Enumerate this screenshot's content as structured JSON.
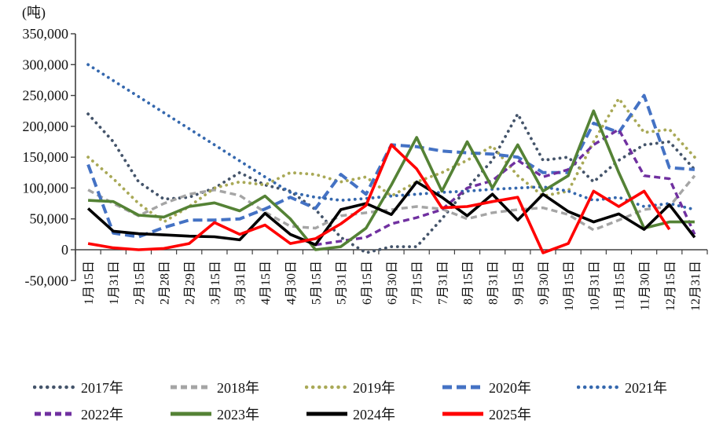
{
  "chart_data": {
    "type": "line",
    "unit_label": "(吨)",
    "title": "",
    "xlabel": "",
    "ylabel": "",
    "ylim": [
      -50000,
      350000
    ],
    "y_tick_step": 50000,
    "y_ticks": [
      350000,
      300000,
      250000,
      200000,
      150000,
      100000,
      50000,
      0,
      -50000
    ],
    "grid": false,
    "legend_position": "bottom",
    "legend_rows": [
      5,
      4
    ],
    "categories": [
      "1月15日",
      "1月31日",
      "2月15日",
      "2月28日",
      "2月29日",
      "3月15日",
      "3月31日",
      "4月15日",
      "4月30日",
      "5月15日",
      "5月31日",
      "6月15日",
      "6月30日",
      "7月15日",
      "7月31日",
      "8月15日",
      "8月31日",
      "9月15日",
      "9月30日",
      "10月15日",
      "10月31日",
      "11月15日",
      "11月30日",
      "12月15日",
      "12月31日"
    ],
    "series": [
      {
        "name": "2017年",
        "color": "#44546A",
        "style": "dotted",
        "values": [
          220000,
          175000,
          110000,
          82000,
          85000,
          100000,
          125000,
          105000,
          95000,
          65000,
          20000,
          -5000,
          5000,
          5000,
          50000,
          100000,
          145000,
          220000,
          145000,
          150000,
          110000,
          145000,
          170000,
          175000,
          130000
        ]
      },
      {
        "name": "2018年",
        "color": "#A5A5A5",
        "style": "dashed",
        "values": [
          97000,
          75000,
          55000,
          75000,
          90000,
          97000,
          88000,
          61000,
          38000,
          35000,
          55000,
          60000,
          65000,
          70000,
          66000,
          50000,
          60000,
          65000,
          68000,
          57000,
          32000,
          48000,
          65000,
          70000,
          120000
        ]
      },
      {
        "name": "2019年",
        "color": "#A9A957",
        "style": "dotted",
        "values": [
          150000,
          115000,
          75000,
          45000,
          70000,
          100000,
          110000,
          105000,
          125000,
          122000,
          110000,
          118000,
          87000,
          110000,
          125000,
          145000,
          168000,
          120000,
          87000,
          95000,
          175000,
          245000,
          190000,
          195000,
          150000
        ]
      },
      {
        "name": "2020年",
        "color": "#4472C4",
        "style": "longdash",
        "values": [
          138000,
          27000,
          21000,
          36000,
          48000,
          48000,
          50000,
          66000,
          85000,
          67000,
          122000,
          90000,
          170000,
          167000,
          160000,
          157000,
          155000,
          150000,
          125000,
          125000,
          205000,
          190000,
          250000,
          133000,
          130000
        ]
      },
      {
        "name": "2021年",
        "color": "#3568AE",
        "style": "dotted",
        "values": [
          300000,
          274000,
          248000,
          222000,
          196000,
          170000,
          144000,
          118000,
          93000,
          85000,
          80000,
          83000,
          87000,
          90000,
          93000,
          95000,
          98000,
          100000,
          102000,
          95000,
          80000,
          85000,
          70000,
          75000,
          65000
        ]
      },
      {
        "name": "2022年",
        "color": "#7030A0",
        "style": "dashed",
        "values": [
          null,
          null,
          null,
          null,
          null,
          null,
          null,
          null,
          null,
          8000,
          14000,
          20000,
          42000,
          52000,
          65000,
          100000,
          112000,
          145000,
          118000,
          130000,
          170000,
          195000,
          120000,
          115000,
          25000
        ]
      },
      {
        "name": "2023年",
        "color": "#548235",
        "style": "solid",
        "values": [
          80000,
          78000,
          56000,
          53000,
          70000,
          76000,
          63000,
          87000,
          50000,
          0,
          5000,
          35000,
          105000,
          182000,
          95000,
          175000,
          100000,
          170000,
          95000,
          120000,
          225000,
          125000,
          35000,
          45000,
          45000
        ]
      },
      {
        "name": "2024年",
        "color": "#000000",
        "style": "solid",
        "values": [
          67000,
          30000,
          26000,
          24000,
          22000,
          21000,
          16000,
          59000,
          25000,
          8000,
          65000,
          75000,
          57000,
          110000,
          85000,
          55000,
          90000,
          48000,
          90000,
          62000,
          45000,
          58000,
          33000,
          73000,
          20000
        ]
      },
      {
        "name": "2025年",
        "color": "#FF0000",
        "style": "solid",
        "values": [
          10000,
          3000,
          0,
          2000,
          10000,
          44000,
          25000,
          40000,
          10000,
          18000,
          42000,
          72000,
          170000,
          131000,
          68000,
          70000,
          78000,
          85000,
          -5000,
          10000,
          95000,
          70000,
          95000,
          33000,
          null
        ]
      }
    ]
  }
}
